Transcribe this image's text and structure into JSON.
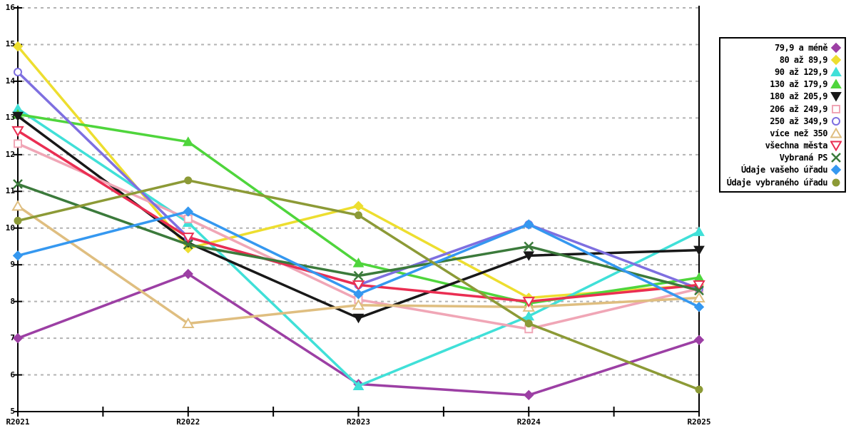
{
  "chart_data": {
    "type": "line",
    "title": "",
    "xlabel": "",
    "ylabel": "",
    "categories": [
      "R2021",
      "R2022",
      "R2023",
      "R2024",
      "R2025"
    ],
    "ylim": [
      5,
      16
    ],
    "yticks": [
      16,
      15,
      14,
      13,
      12,
      11,
      10,
      9,
      8,
      7,
      6,
      5
    ],
    "grid": "horizontal-dashed",
    "legend_position": "top-right-outside",
    "grid_color": "#b3b3b3",
    "axis_color": "#000000",
    "series": [
      {
        "name": "79,9 a méně",
        "color": "#9c3fa4",
        "marker": "diamond",
        "filled": true,
        "values": [
          7.0,
          8.75,
          5.75,
          5.45,
          6.95
        ]
      },
      {
        "name": "80 až 89,9",
        "color": "#eddе2f",
        "marker": "diamond",
        "filled": true,
        "values": [
          14.95,
          9.45,
          10.6,
          8.1,
          8.45
        ]
      },
      {
        "name": "90 až 129,9",
        "color": "#40e0d8",
        "marker": "triangle-up",
        "filled": true,
        "values": [
          13.25,
          10.15,
          5.7,
          7.6,
          9.9
        ]
      },
      {
        "name": "130 až 179,9",
        "color": "#4fd53c",
        "marker": "triangle-up",
        "filled": true,
        "values": [
          13.1,
          12.35,
          9.05,
          7.95,
          8.65
        ]
      },
      {
        "name": "180 až 205,9",
        "color": "#181818",
        "marker": "triangle-down",
        "filled": true,
        "values": [
          13.05,
          9.6,
          7.55,
          9.25,
          9.4
        ]
      },
      {
        "name": "206 až 249,9",
        "color": "#f0a6b6",
        "marker": "square",
        "filled": false,
        "values": [
          12.3,
          10.25,
          8.05,
          7.25,
          8.35
        ]
      },
      {
        "name": "250 až 349,9",
        "color": "#7e6fe0",
        "marker": "circle",
        "filled": false,
        "values": [
          14.25,
          9.75,
          8.45,
          10.1,
          8.35
        ]
      },
      {
        "name": "více než 350",
        "color": "#dfbe80",
        "marker": "triangle-up",
        "filled": false,
        "values": [
          10.6,
          7.4,
          7.9,
          7.85,
          8.1
        ]
      },
      {
        "name": "všechna města",
        "color": "#ea2e52",
        "marker": "triangle-down",
        "filled": false,
        "values": [
          12.65,
          9.75,
          8.45,
          8.0,
          8.45
        ]
      },
      {
        "name": "Vybraná PS",
        "color": "#3b7a3b",
        "marker": "x",
        "filled": false,
        "values": [
          11.2,
          9.55,
          8.7,
          9.5,
          8.3
        ]
      },
      {
        "name": "Údaje vašeho úřadu",
        "color": "#3598f0",
        "marker": "diamond",
        "filled": true,
        "values": [
          9.25,
          10.45,
          8.2,
          10.1,
          7.85
        ]
      },
      {
        "name": "Údaje vybraného úřadu",
        "color": "#8c9a36",
        "marker": "circle",
        "filled": true,
        "values": [
          10.2,
          11.3,
          10.35,
          7.4,
          5.6
        ]
      }
    ]
  }
}
